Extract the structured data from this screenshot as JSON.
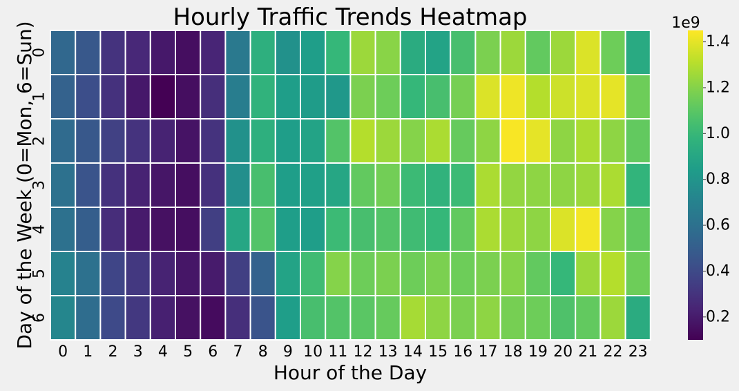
{
  "chart_data": {
    "type": "heatmap",
    "title": "Hourly Traffic Trends Heatmap",
    "xlabel": "Hour of the Day",
    "ylabel": "Day of the Week (0=Mon, 6=Sun)",
    "x_categories": [
      "0",
      "1",
      "2",
      "3",
      "4",
      "5",
      "6",
      "7",
      "8",
      "9",
      "10",
      "11",
      "12",
      "13",
      "14",
      "15",
      "16",
      "17",
      "18",
      "19",
      "20",
      "21",
      "22",
      "23"
    ],
    "y_categories": [
      "0",
      "1",
      "2",
      "3",
      "4",
      "5",
      "6"
    ],
    "values": [
      [
        0.55,
        0.47,
        0.3,
        0.25,
        0.19,
        0.15,
        0.24,
        0.65,
        0.95,
        0.78,
        0.85,
        1.0,
        1.25,
        1.21,
        0.93,
        0.88,
        1.05,
        1.18,
        1.25,
        1.12,
        1.25,
        1.38,
        1.15,
        0.92
      ],
      [
        0.52,
        0.42,
        0.29,
        0.19,
        0.1,
        0.15,
        0.28,
        0.67,
        0.97,
        0.85,
        0.84,
        0.82,
        1.18,
        1.15,
        1.0,
        1.05,
        1.17,
        1.38,
        1.42,
        1.3,
        1.35,
        1.38,
        1.4,
        1.15
      ],
      [
        0.57,
        0.47,
        0.36,
        0.3,
        0.23,
        0.17,
        0.3,
        0.78,
        0.95,
        0.85,
        0.88,
        1.08,
        1.3,
        1.25,
        1.2,
        1.28,
        1.13,
        1.22,
        1.44,
        1.4,
        1.22,
        1.28,
        1.22,
        1.12
      ],
      [
        0.6,
        0.45,
        0.29,
        0.23,
        0.18,
        0.15,
        0.29,
        0.77,
        1.05,
        0.85,
        0.86,
        0.9,
        1.12,
        1.16,
        1.02,
        0.97,
        1.02,
        1.28,
        1.23,
        1.22,
        1.22,
        1.25,
        1.28,
        0.98
      ],
      [
        0.6,
        0.5,
        0.27,
        0.2,
        0.16,
        0.15,
        0.35,
        0.9,
        1.08,
        0.85,
        0.85,
        1.02,
        1.05,
        1.08,
        1.03,
        1.0,
        1.12,
        1.28,
        1.25,
        1.22,
        1.38,
        1.43,
        1.2,
        1.12
      ],
      [
        0.7,
        0.6,
        0.38,
        0.32,
        0.23,
        0.18,
        0.2,
        0.35,
        0.52,
        0.88,
        1.03,
        1.2,
        1.15,
        1.18,
        1.15,
        1.18,
        1.15,
        1.18,
        1.2,
        1.12,
        1.0,
        1.25,
        1.3,
        1.15
      ],
      [
        0.72,
        0.58,
        0.4,
        0.32,
        0.22,
        0.16,
        0.14,
        0.28,
        0.45,
        0.85,
        1.05,
        1.08,
        1.1,
        1.13,
        1.27,
        1.22,
        1.18,
        1.22,
        1.17,
        1.15,
        1.07,
        1.12,
        1.25,
        0.93
      ]
    ],
    "colormap": "viridis",
    "colorbar": {
      "ticks": [
        0.2,
        0.4,
        0.6,
        0.8,
        1.0,
        1.2,
        1.4
      ],
      "tick_labels": [
        "0.2",
        "0.4",
        "0.6",
        "0.8",
        "1.0",
        "1.2",
        "1.4"
      ],
      "multiplier_label": "1e9",
      "range": [
        0.1,
        1.45
      ]
    },
    "grid": false,
    "cell_border_color": "#ffffff"
  }
}
